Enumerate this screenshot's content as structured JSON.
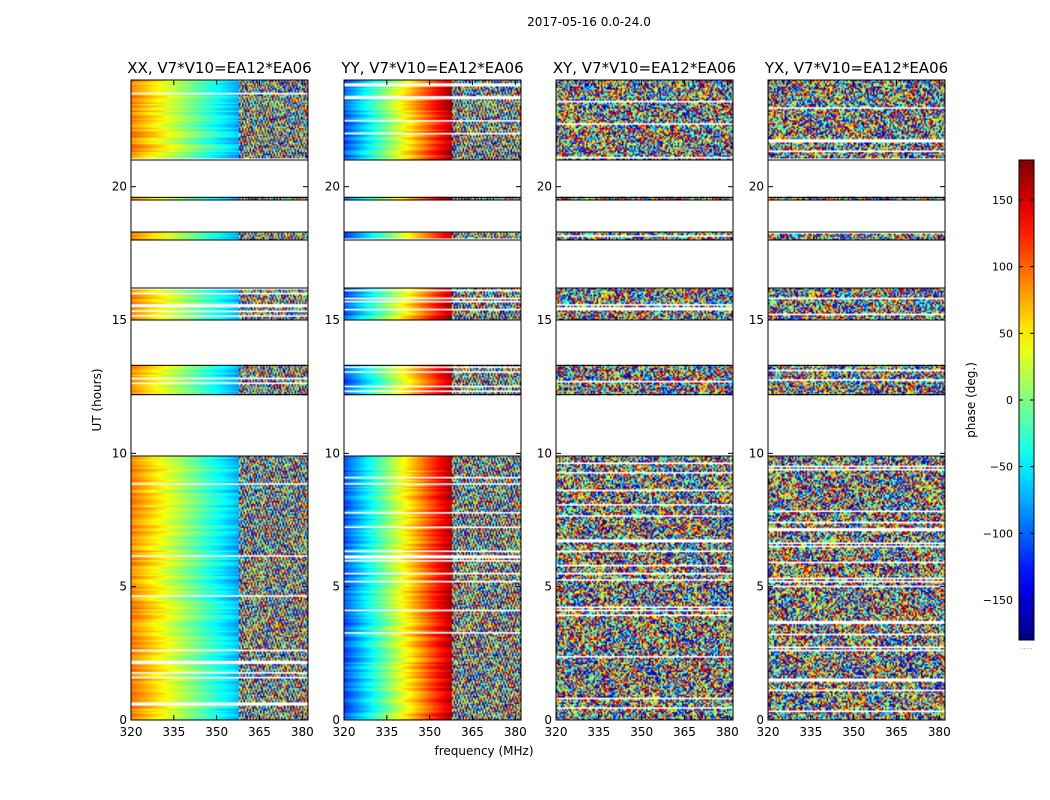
{
  "figure": {
    "suptitle": "2017-05-16 0.0-24.0"
  },
  "chart_data": {
    "type": "heatmap",
    "title": "2017-05-16 0.0-24.0",
    "xlabel": "frequency (MHz)",
    "ylabel": "UT (hours)",
    "xlim": [
      320,
      382
    ],
    "ylim": [
      0,
      24
    ],
    "xticks": [
      320,
      335,
      350,
      365,
      380
    ],
    "yticks": [
      0,
      5,
      10,
      15,
      20
    ],
    "panels": [
      {
        "title": "XX, V7*V10=EA12*EA06",
        "pol": "XX",
        "baseline": "V7*V10=EA12*EA06",
        "pattern": "smooth-gradient"
      },
      {
        "title": "YY, V7*V10=EA12*EA06",
        "pol": "YY",
        "baseline": "V7*V10=EA12*EA06",
        "pattern": "smooth-gradient"
      },
      {
        "title": "XY, V7*V10=EA12*EA06",
        "pol": "XY",
        "baseline": "V7*V10=EA12*EA06",
        "pattern": "noisy"
      },
      {
        "title": "YX, V7*V10=EA12*EA06",
        "pol": "YX",
        "baseline": "V7*V10=EA12*EA06",
        "pattern": "noisy"
      }
    ],
    "data_coverage_ut_hours": [
      [
        0,
        9.9
      ],
      [
        12.2,
        13.3
      ],
      [
        15.0,
        16.2
      ],
      [
        18.0,
        18.3
      ],
      [
        19.5,
        19.6
      ],
      [
        21.0,
        24.0
      ]
    ],
    "colorbar": {
      "label": "phase (deg.)",
      "range": [
        -180,
        180
      ],
      "ticks": [
        150,
        100,
        50,
        0,
        -50,
        -100,
        -150
      ],
      "tick_labels": [
        "150",
        "100",
        "50",
        "0",
        "−50",
        "−100",
        "−150"
      ],
      "colormap": "jet",
      "footer": "....."
    }
  }
}
